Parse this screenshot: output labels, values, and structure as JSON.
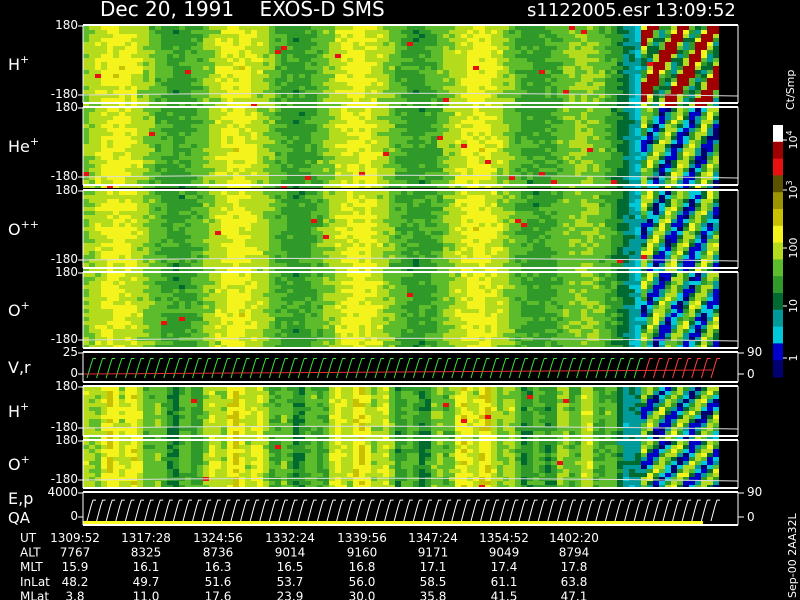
{
  "header": {
    "title": "Dec 20, 1991    EXOS-D SMS",
    "file": "s1122005.esr",
    "time": "13:09:52"
  },
  "panels": [
    {
      "label": "H",
      "sup": "+",
      "top": "180",
      "bottom": "-180"
    },
    {
      "label": "He",
      "sup": "+",
      "top": "180",
      "bottom": "-180"
    },
    {
      "label": "O",
      "sup": "++",
      "top": "180",
      "bottom": "-180"
    },
    {
      "label": "O",
      "sup": "+",
      "top": "180",
      "bottom": "-180"
    },
    {
      "label": "V,r",
      "top": "25",
      "bottom": "0",
      "right_top": "90",
      "right_bottom": "0"
    },
    {
      "label": "H",
      "sup": "+",
      "top": "180",
      "bottom": "-180"
    },
    {
      "label": "O",
      "sup": "+",
      "top": "180",
      "bottom": "-180"
    },
    {
      "label": "E,p",
      "label2": "QA",
      "top": "4000",
      "bottom": "0",
      "right_top": "90",
      "right_bottom": "0"
    }
  ],
  "colorbar": {
    "unit": "Ct/Smp",
    "ticks": [
      {
        "base": "10",
        "exp": "4"
      },
      {
        "base": "10",
        "exp": "3"
      },
      {
        "base": "100"
      },
      {
        "base": "10"
      },
      {
        "base": "1"
      }
    ]
  },
  "footnote": "Sep-00  2AA32L",
  "table": {
    "rows": [
      {
        "label": "UT",
        "values": [
          "1309:52",
          "1317:28",
          "1324:56",
          "1332:24",
          "1339:56",
          "1347:24",
          "1354:52",
          "1402:20"
        ]
      },
      {
        "label": "ALT",
        "values": [
          "7767",
          "8325",
          "8736",
          "9014",
          "9160",
          "9171",
          "9049",
          "8794"
        ]
      },
      {
        "label": "MLT",
        "values": [
          "15.9",
          "16.1",
          "16.3",
          "16.5",
          "16.8",
          "17.1",
          "17.4",
          "17.8"
        ]
      },
      {
        "label": "InLat",
        "values": [
          "48.2",
          "49.7",
          "51.6",
          "53.7",
          "56.0",
          "58.5",
          "61.1",
          "63.8"
        ]
      },
      {
        "label": "MLat",
        "values": [
          "3.8",
          "11.0",
          "17.6",
          "23.9",
          "30.0",
          "35.8",
          "41.5",
          "47.1"
        ]
      }
    ]
  }
}
